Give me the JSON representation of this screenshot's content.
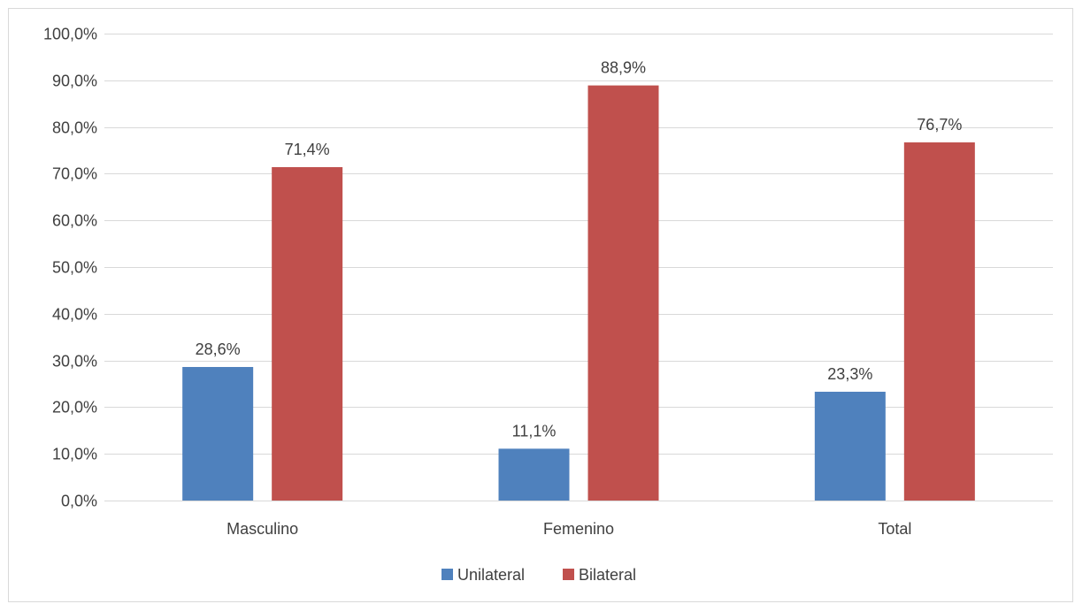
{
  "chart_data": {
    "type": "bar",
    "categories": [
      "Masculino",
      "Femenino",
      "Total"
    ],
    "series": [
      {
        "name": "Unilateral",
        "values": [
          28.6,
          11.1,
          23.3
        ],
        "labels": [
          "28,6%",
          "11,1%",
          "23,3%"
        ],
        "color": "#4f81bd"
      },
      {
        "name": "Bilateral",
        "values": [
          71.4,
          88.9,
          76.7
        ],
        "labels": [
          "71,4%",
          "88,9%",
          "76,7%"
        ],
        "color": "#c0504d"
      }
    ],
    "ylim": [
      0,
      100
    ],
    "yticks": [
      0,
      10,
      20,
      30,
      40,
      50,
      60,
      70,
      80,
      90,
      100
    ],
    "ytick_labels": [
      "0,0%",
      "10,0%",
      "20,0%",
      "30,0%",
      "40,0%",
      "50,0%",
      "60,0%",
      "70,0%",
      "80,0%",
      "90,0%",
      "100,0%"
    ],
    "grid": true,
    "legend_position": "bottom",
    "colors": {
      "grid": "#d9d9d9",
      "axis": "#d9d9d9",
      "text": "#404040"
    }
  }
}
